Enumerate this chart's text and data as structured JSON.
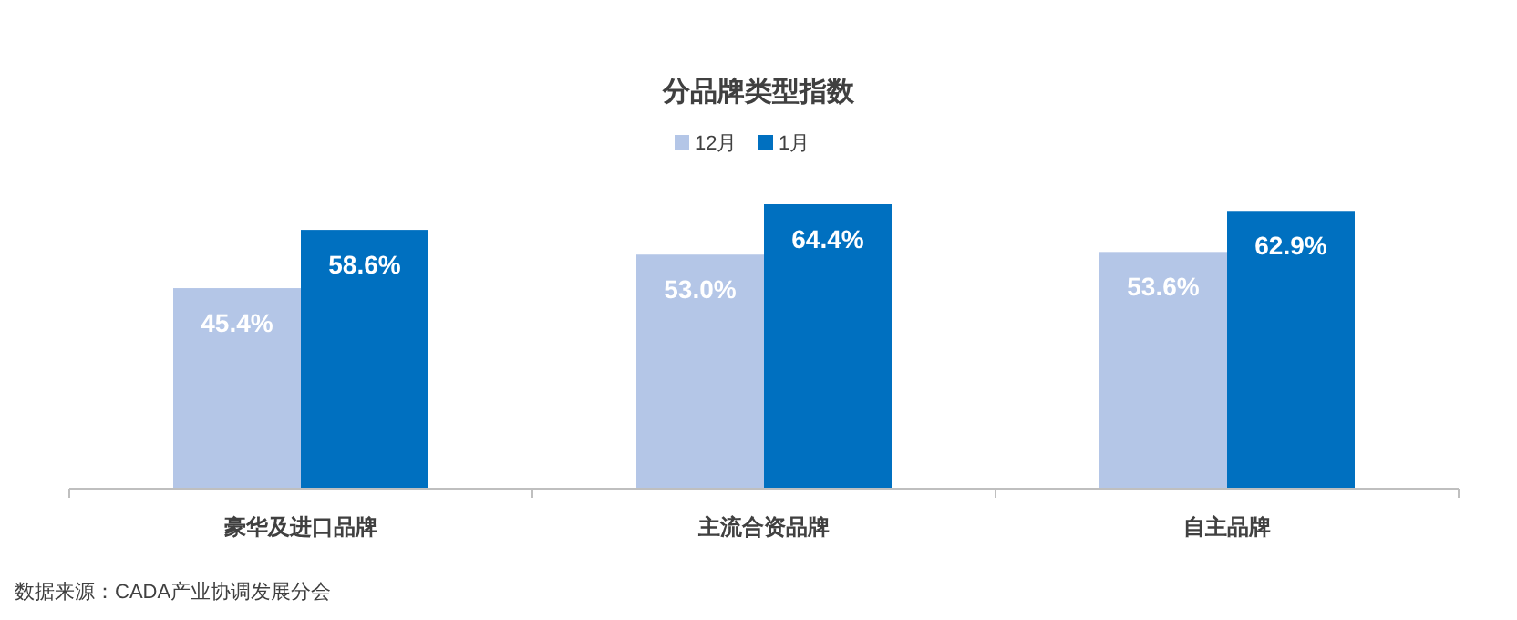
{
  "chart_data": {
    "type": "bar",
    "title": "分品牌类型指数",
    "categories": [
      "豪华及进口品牌",
      "主流合资品牌",
      "自主品牌"
    ],
    "series": [
      {
        "name": "12月",
        "color": "#b4c6e7",
        "values": [
          45.4,
          53.0,
          53.6
        ],
        "value_labels": [
          "45.4%",
          "53.0%",
          "53.6%"
        ]
      },
      {
        "name": "1月",
        "color": "#0070c0",
        "values": [
          58.6,
          64.4,
          62.9
        ],
        "value_labels": [
          "58.6%",
          "64.4%",
          "62.9%"
        ]
      }
    ],
    "legend": "top",
    "annotations": [
      "数据来源：CADA产业协调发展分会"
    ]
  }
}
